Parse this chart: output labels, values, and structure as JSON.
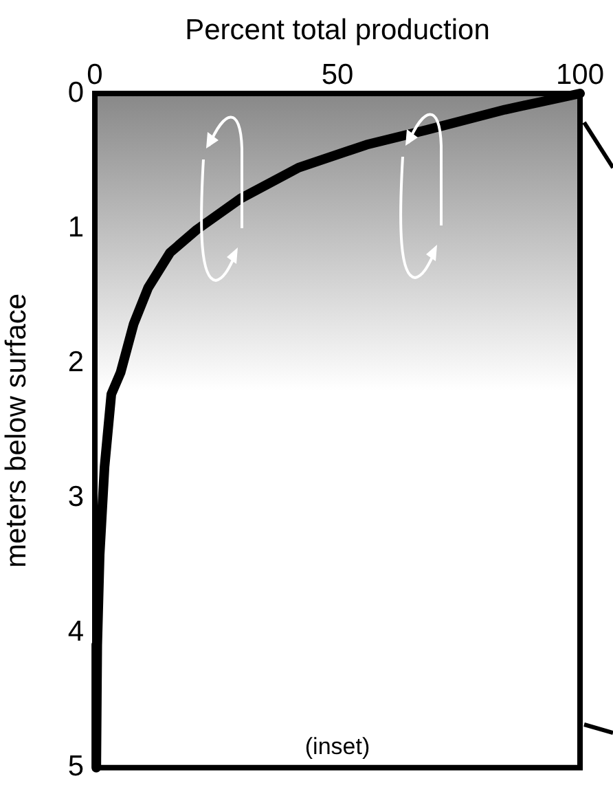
{
  "chart_data": {
    "type": "line",
    "xlabel": "Percent total production",
    "ylabel": "meters below surface",
    "x": [
      100,
      84.5,
      68.4,
      56,
      42,
      30,
      21,
      15.5,
      11,
      8,
      5.3,
      3.4,
      2,
      1,
      0.5,
      0.3
    ],
    "series": [
      {
        "color": "#000000",
        "values": [
          0,
          0.12,
          0.27,
          0.38,
          0.55,
          0.78,
          1.01,
          1.18,
          1.44,
          1.71,
          2.07,
          2.23,
          2.77,
          3.42,
          4.09,
          5
        ]
      }
    ],
    "xlim": [
      0,
      100
    ],
    "xticks": [
      0,
      50,
      100
    ],
    "ylim": [
      5,
      0
    ],
    "yticks": [
      0,
      1,
      2,
      3,
      4,
      5
    ],
    "bands": [
      {
        "axis": "y",
        "from": 0,
        "to": 2.2,
        "color": "#888888"
      }
    ],
    "annotations": [
      "(inset)"
    ],
    "grid": false,
    "legend": false,
    "marker": "none",
    "line_style": "solid"
  }
}
